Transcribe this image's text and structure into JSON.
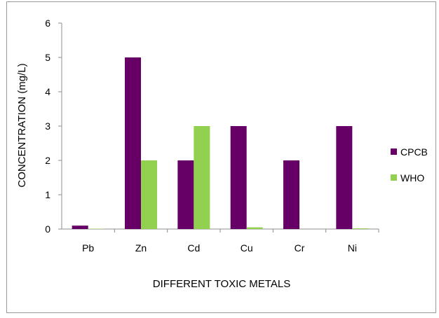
{
  "chart_data": {
    "type": "bar",
    "categories": [
      "Pb",
      "Zn",
      "Cd",
      "Cu",
      "Cr",
      "Ni"
    ],
    "series": [
      {
        "name": "CPCB",
        "color": "#660066",
        "values": [
          0.1,
          5,
          2,
          3,
          2,
          3
        ]
      },
      {
        "name": "WHO",
        "color": "#92d050",
        "values": [
          0.01,
          2,
          3,
          0.05,
          0,
          0.02
        ]
      }
    ],
    "xlabel": "DIFFERENT TOXIC METALS",
    "ylabel": "CONCENTRATION (mg/L)",
    "ylim": [
      0,
      6
    ],
    "yticks": [
      "0",
      "1",
      "2",
      "3",
      "4",
      "5",
      "6"
    ],
    "grid": false,
    "legend_position": "right"
  }
}
